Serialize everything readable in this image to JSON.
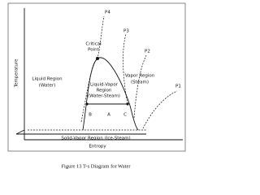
{
  "figure": {
    "caption": "Figure 13   T-s Diagram for Water",
    "axes": {
      "y_label": "Temperature",
      "x_label": "Entropy"
    },
    "pressure_lines": [
      "P4",
      "P3",
      "P2",
      "P1"
    ],
    "regions": {
      "critical_point": [
        "Critical",
        "Point"
      ],
      "liquid": [
        "Liquid Region",
        "(Water)"
      ],
      "vapor": [
        "Vapor Region",
        "(Steam)"
      ],
      "liquid_vapor": [
        "Liquid-Vapor",
        "Region",
        "(Water-Steam)"
      ],
      "solid_vapor": "Solid-Vapor Region (Ice-Steam)"
    },
    "points": [
      "B",
      "A",
      "C"
    ]
  }
}
